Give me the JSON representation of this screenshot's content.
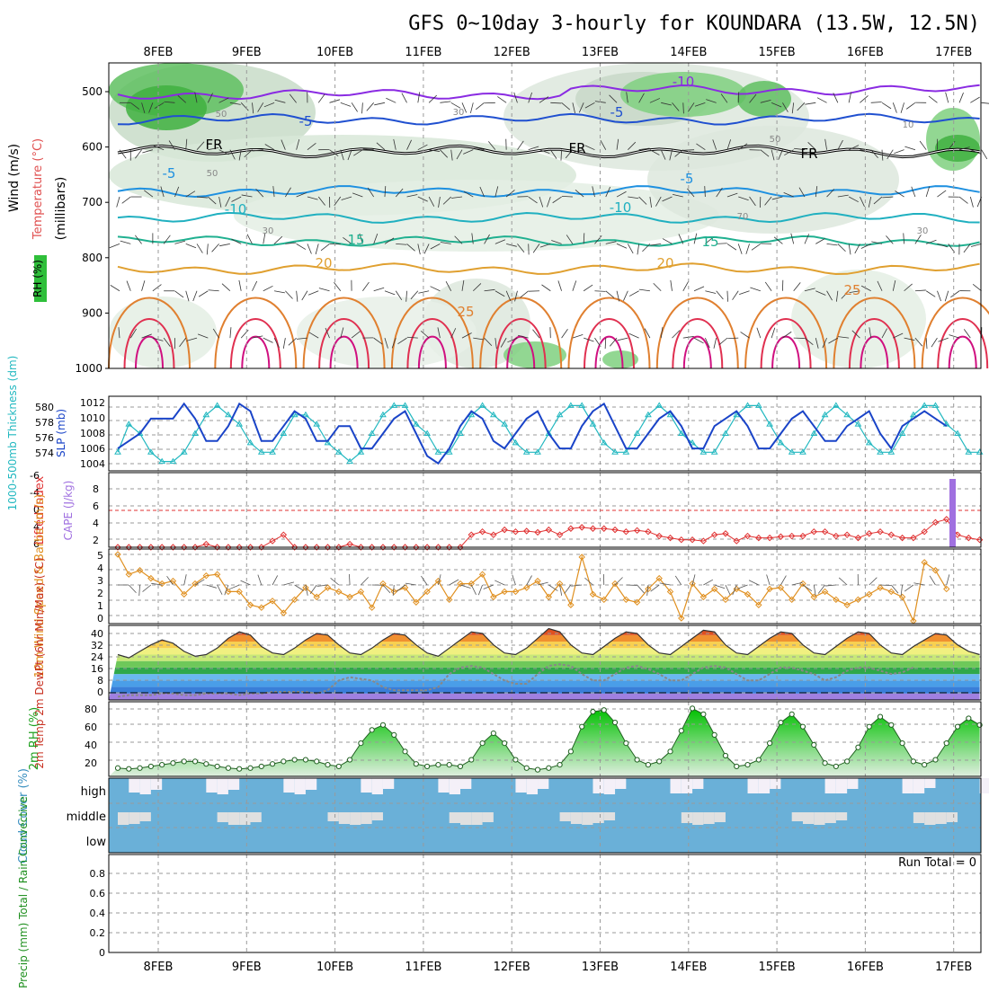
{
  "title": "GFS 0~10day 3-hourly for KOUNDARA (13.5W, 12.5N)",
  "dates": [
    "8FEB",
    "9FEB",
    "10FEB",
    "11FEB",
    "12FEB",
    "13FEB",
    "14FEB",
    "15FEB",
    "16FEB",
    "17FEB"
  ],
  "colors": {
    "grid": "#9a9a9a",
    "rhShade": "#2fbf3a",
    "temp": "#e05050",
    "wind": "#1a55c8",
    "slp": "#1a44c8",
    "thick": "#22b8c0",
    "li": "#e03030",
    "cape": "#a070e0",
    "wind10": "#e09020",
    "rh2m": "#20a020",
    "cloud": "#6ab0d8",
    "precip": "#209020"
  },
  "panels": {
    "upper": {
      "ylabel_rh": "RH (%)",
      "ylabel_temp": "Temperature (°C)",
      "ylabel_wind": "Wind (m/s)",
      "ylabel_units": "(millibars)",
      "levels": [
        "500",
        "600",
        "700",
        "800",
        "900",
        "1000"
      ],
      "isotherm_labels": [
        "-10",
        "-5",
        "-5",
        "FR",
        "FR",
        "FR",
        "-5",
        "-5",
        "-10",
        "-10",
        "15",
        "15",
        "20",
        "20",
        "25",
        "25"
      ],
      "rh_labels": [
        "50",
        "30",
        "50",
        "70",
        "30",
        "10",
        "50",
        "30"
      ],
      "isotherms": [
        {
          "temp": -10,
          "color": "#8a2be2"
        },
        {
          "temp": -5,
          "color": "#2050d0"
        },
        {
          "temp": 0,
          "color": "#000000"
        },
        {
          "temp": 5,
          "color": "#1e90e0"
        },
        {
          "temp": 10,
          "color": "#20b0c0"
        },
        {
          "temp": 15,
          "color": "#20b090"
        },
        {
          "temp": 20,
          "color": "#e0a030"
        },
        {
          "temp": 25,
          "color": "#e08030"
        },
        {
          "temp": 30,
          "color": "#e03050"
        },
        {
          "temp": 35,
          "color": "#d01080"
        }
      ]
    },
    "slp": {
      "ylabel_left": "1000-500mb Thickness (dm)",
      "ylabel_right": "SLP (mb)",
      "left_ticks": [
        "580",
        "578",
        "576",
        "574"
      ],
      "right_ticks": [
        "1012",
        "1010",
        "1008",
        "1006",
        "1004"
      ]
    },
    "li": {
      "ylabel_left": "Lifted Index",
      "ylabel_right": "CAPE (J/kg)",
      "left_ticks": [
        "-6",
        "-4",
        "0",
        "4",
        "6"
      ],
      "right_ticks": [
        "8",
        "6",
        "4",
        "2"
      ]
    },
    "wind10": {
      "ylabel": "10m Wind Speed & Barbs (m/s)",
      "ticks": [
        "5",
        "4",
        "3",
        "2",
        "1",
        "0"
      ]
    },
    "temp2m": {
      "ylabel": "2m Temp 2m DewPt (6hr Min/Max) (°C)",
      "ticks": [
        "40",
        "32",
        "24",
        "16",
        "8",
        "0"
      ]
    },
    "rh2m": {
      "ylabel": "2m RH (%)",
      "ticks": [
        "80",
        "60",
        "40",
        "20"
      ]
    },
    "cloud": {
      "ylabel": "Cloud Cover (%)",
      "levels": [
        "high",
        "middle",
        "low"
      ]
    },
    "precip": {
      "ylabel": "3hr Precip (mm) Total / Rain Convective",
      "ticks": [
        "0.8",
        "0.6",
        "0.4",
        "0.2",
        "0"
      ],
      "run_total": "Run Total = 0"
    }
  },
  "chart_data": [
    {
      "type": "line",
      "title": "1000-500mb Thickness (dm)",
      "x_unit": "3-hour step from 7FEB 12Z",
      "values": [
        575,
        578,
        577,
        575,
        574,
        574,
        575,
        577,
        579,
        580,
        579,
        578,
        576,
        575,
        575,
        577,
        579,
        579,
        578,
        576,
        575,
        574,
        575,
        577,
        579,
        580,
        580,
        578,
        577,
        575,
        575,
        577,
        579,
        580,
        579,
        578,
        576,
        575,
        575,
        577,
        579,
        580,
        580,
        578,
        576,
        575,
        575,
        577,
        579,
        580,
        579,
        577,
        576,
        575,
        575,
        577,
        579,
        580,
        580,
        578,
        576,
        575,
        575,
        577,
        579,
        580,
        579,
        578,
        576,
        575,
        575,
        577,
        579,
        580,
        580,
        578,
        577,
        575,
        575,
        577,
        580,
        581,
        580,
        578,
        576,
        576
      ],
      "ylim": [
        573,
        581
      ]
    },
    {
      "type": "line",
      "title": "SLP (mb)",
      "values": [
        1006,
        1007,
        1008,
        1010,
        1010,
        1010,
        1012,
        1010,
        1007,
        1007,
        1009,
        1012,
        1011,
        1007,
        1007,
        1009,
        1011,
        1010,
        1007,
        1007,
        1009,
        1009,
        1006,
        1006,
        1008,
        1010,
        1011,
        1008,
        1005,
        1004,
        1006,
        1009,
        1011,
        1010,
        1007,
        1006,
        1008,
        1010,
        1011,
        1008,
        1006,
        1006,
        1009,
        1011,
        1012,
        1009,
        1006,
        1006,
        1008,
        1010,
        1011,
        1009,
        1006,
        1006,
        1009,
        1010,
        1011,
        1009,
        1006,
        1006,
        1008,
        1010,
        1011,
        1009,
        1007,
        1007,
        1009,
        1010,
        1011,
        1008,
        1006,
        1009,
        1010,
        1011,
        1010,
        1009
      ],
      "ylim": [
        1003,
        1013
      ]
    },
    {
      "type": "line",
      "title": "Lifted Index",
      "values": [
        6,
        6,
        6,
        6,
        6,
        6,
        6,
        6,
        5.5,
        6,
        6,
        6,
        6,
        6,
        5,
        4,
        6,
        6,
        6,
        6,
        6,
        5.5,
        6,
        6,
        6,
        6,
        6,
        6,
        6,
        6,
        6,
        6,
        4,
        3.5,
        4,
        3.2,
        3.5,
        3.4,
        3.6,
        3.2,
        4,
        3,
        2.8,
        3,
        3,
        3.2,
        3.5,
        3.3,
        3.5,
        4.2,
        4.5,
        4.8,
        4.8,
        5,
        4,
        3.8,
        5,
        4.2,
        4.5,
        4.5,
        4.3,
        4.2,
        4.2,
        3.5,
        3.5,
        4.2,
        4,
        4.5,
        3.8,
        3.5,
        4,
        4.5,
        4.5,
        3.5,
        2,
        1.5,
        4,
        4.5,
        4.8,
        4.8
      ],
      "ylim": [
        6,
        -6
      ]
    },
    {
      "type": "bar",
      "title": "CAPE (J/kg)",
      "values": [
        {
          "x": "17FEB",
          "value": 9
        }
      ],
      "ylim": [
        0,
        10
      ]
    },
    {
      "type": "line",
      "title": "10m Wind Speed (m/s)",
      "values": [
        5,
        3.5,
        3.8,
        3.2,
        2.8,
        3,
        2,
        2.8,
        3.4,
        3.5,
        2.2,
        2.2,
        1.2,
        1,
        1.5,
        0.6,
        1.6,
        2.5,
        1.8,
        2.5,
        2.2,
        1.8,
        2.2,
        1,
        2.8,
        2.2,
        2.5,
        1.4,
        2.2,
        3,
        1.6,
        2.8,
        2.8,
        3.5,
        1.8,
        2.2,
        2.2,
        2.5,
        3,
        1.8,
        2.8,
        1.2,
        4.8,
        2,
        1.6,
        2.8,
        1.6,
        1.4,
        2.4,
        3.2,
        2.2,
        0.2,
        2.8,
        1.8,
        2.4,
        1.6,
        2.4,
        2,
        1.2,
        2.4,
        2.5,
        1.6,
        2.8,
        1.8,
        2.2,
        1.6,
        1.2,
        1.6,
        2,
        2.5,
        2.2,
        1.8,
        0,
        4.4,
        3.8,
        2.4
      ],
      "ylim": [
        0,
        5
      ]
    },
    {
      "type": "area",
      "title": "2m Temp (°C)",
      "values": [
        24,
        22,
        26,
        30,
        33,
        31,
        26,
        23,
        24,
        28,
        34,
        38,
        36,
        29,
        25,
        24,
        28,
        33,
        37,
        36,
        30,
        25,
        24,
        28,
        33,
        37,
        36,
        30,
        25,
        23,
        28,
        33,
        38,
        37,
        30,
        25,
        24,
        28,
        34,
        40,
        38,
        30,
        25,
        24,
        29,
        34,
        38,
        37,
        30,
        25,
        24,
        29,
        34,
        39,
        38,
        30,
        25,
        24,
        29,
        34,
        38,
        37,
        30,
        25,
        24,
        29,
        34,
        38,
        37,
        30,
        25,
        24,
        29,
        33,
        37,
        36,
        30,
        26,
        24,
        25
      ],
      "ylim": [
        -4,
        42
      ]
    },
    {
      "type": "line",
      "title": "2m DewPt (°C)",
      "values": [
        -2,
        -1,
        -1,
        -1,
        0,
        0,
        -1,
        -1,
        0,
        0,
        0,
        -1,
        0,
        0,
        1,
        1,
        1,
        1,
        0,
        2,
        8,
        10,
        9,
        8,
        4,
        2,
        2,
        2,
        2,
        4,
        12,
        16,
        17,
        16,
        12,
        8,
        6,
        6,
        12,
        17,
        18,
        17,
        12,
        8,
        8,
        12,
        16,
        17,
        15,
        12,
        8,
        8,
        12,
        16,
        17,
        16,
        12,
        8,
        8,
        12,
        16,
        16,
        14,
        12,
        8,
        10,
        14,
        16,
        16,
        14,
        12,
        13,
        16
      ],
      "ylim": [
        -4,
        42
      ]
    },
    {
      "type": "area",
      "title": "2m RH (%)",
      "values": [
        10,
        9,
        10,
        12,
        14,
        16,
        18,
        18,
        15,
        12,
        10,
        9,
        10,
        12,
        15,
        18,
        20,
        20,
        18,
        14,
        12,
        20,
        40,
        56,
        62,
        50,
        30,
        15,
        12,
        14,
        14,
        12,
        20,
        40,
        52,
        40,
        20,
        10,
        8,
        10,
        14,
        30,
        60,
        78,
        80,
        65,
        40,
        20,
        14,
        18,
        30,
        55,
        82,
        75,
        50,
        25,
        12,
        14,
        20,
        40,
        65,
        75,
        60,
        38,
        16,
        12,
        18,
        35,
        60,
        72,
        62,
        40,
        18,
        14,
        20,
        40,
        60,
        70,
        62,
        30,
        14,
        16,
        25,
        45,
        60,
        62
      ],
      "ylim": [
        0,
        90
      ]
    },
    {
      "type": "bar",
      "title": "3hr Precip (mm)",
      "values": [],
      "ylim": [
        0,
        1
      ]
    }
  ]
}
